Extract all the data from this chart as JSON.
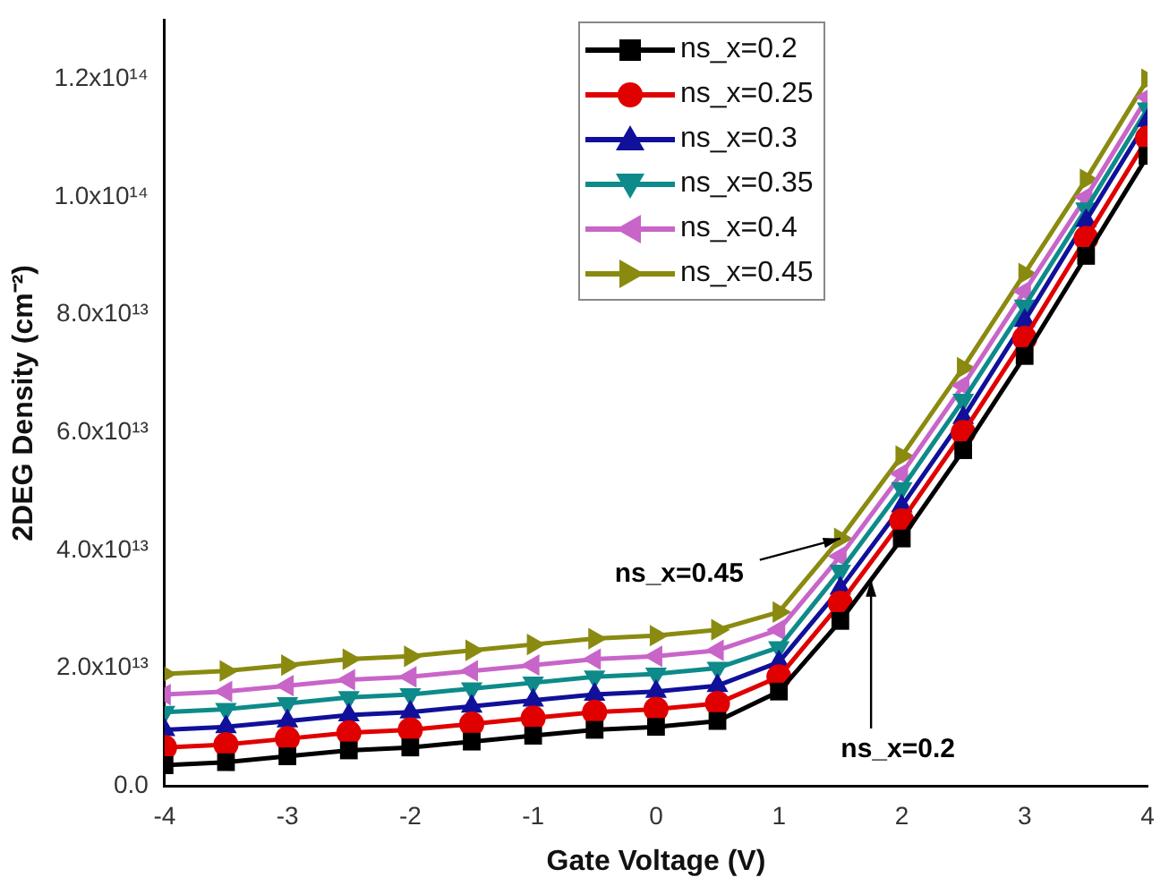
{
  "chart_data": {
    "type": "line",
    "xlabel": "Gate Voltage (V)",
    "ylabel": "2DEG Density (cm⁻²)",
    "x": [
      -4,
      -3.5,
      -3,
      -2.5,
      -2,
      -1.5,
      -1,
      -0.5,
      0,
      0.5,
      1,
      1.5,
      2,
      2.5,
      3,
      3.5,
      4
    ],
    "series": [
      {
        "name": "ns_x=0.2",
        "color": "#000000",
        "marker": "square",
        "values": [
          3500000000000.0,
          4000000000000.0,
          5000000000000.0,
          6000000000000.0,
          6500000000000.0,
          7500000000000.0,
          8500000000000.0,
          9500000000000.0,
          10000000000000.0,
          11000000000000.0,
          16000000000000.0,
          28000000000000.0,
          42000000000000.0,
          57000000000000.0,
          73000000000000.0,
          90000000000000.0,
          107000000000000.0
        ]
      },
      {
        "name": "ns_x=0.25",
        "color": "#e00000",
        "marker": "circle",
        "values": [
          6500000000000.0,
          7000000000000.0,
          8000000000000.0,
          9000000000000.0,
          9500000000000.0,
          10500000000000.0,
          11500000000000.0,
          12500000000000.0,
          13000000000000.0,
          14000000000000.0,
          18500000000000.0,
          31000000000000.0,
          45000000000000.0,
          60000000000000.0,
          76000000000000.0,
          93000000000000.0,
          110000000000000.0
        ]
      },
      {
        "name": "ns_x=0.3",
        "color": "#10109a",
        "marker": "triangle",
        "values": [
          9500000000000.0,
          10000000000000.0,
          11000000000000.0,
          12000000000000.0,
          12500000000000.0,
          13500000000000.0,
          14500000000000.0,
          15500000000000.0,
          16000000000000.0,
          17000000000000.0,
          21000000000000.0,
          33500000000000.0,
          47500000000000.0,
          62500000000000.0,
          79000000000000.0,
          96000000000000.0,
          113000000000000.0
        ]
      },
      {
        "name": "ns_x=0.35",
        "color": "#0e8a8a",
        "marker": "triangle-down",
        "values": [
          12500000000000.0,
          13000000000000.0,
          14000000000000.0,
          15000000000000.0,
          15500000000000.0,
          16500000000000.0,
          17500000000000.0,
          18500000000000.0,
          19000000000000.0,
          20000000000000.0,
          23500000000000.0,
          36500000000000.0,
          50500000000000.0,
          65500000000000.0,
          81500000000000.0,
          98000000000000.0,
          115000000000000.0
        ]
      },
      {
        "name": "ns_x=0.4",
        "color": "#c865c8",
        "marker": "triangle-left",
        "values": [
          15500000000000.0,
          16000000000000.0,
          17000000000000.0,
          18000000000000.0,
          18500000000000.0,
          19500000000000.0,
          20500000000000.0,
          21500000000000.0,
          22000000000000.0,
          23000000000000.0,
          26500000000000.0,
          39000000000000.0,
          53000000000000.0,
          68000000000000.0,
          84000000000000.0,
          100000000000000.0,
          117000000000000.0
        ]
      },
      {
        "name": "ns_x=0.45",
        "color": "#8a8a10",
        "marker": "triangle-right",
        "values": [
          19000000000000.0,
          19500000000000.0,
          20500000000000.0,
          21500000000000.0,
          22000000000000.0,
          23000000000000.0,
          24000000000000.0,
          25000000000000.0,
          25500000000000.0,
          26500000000000.0,
          29500000000000.0,
          42000000000000.0,
          56000000000000.0,
          71000000000000.0,
          87000000000000.0,
          103000000000000.0,
          120000000000000.0
        ]
      }
    ],
    "xlim": [
      -4,
      4
    ],
    "xticks": [
      -4,
      -3,
      -2,
      -1,
      0,
      1,
      2,
      3,
      4
    ],
    "ylim": [
      0,
      130000000000000.0
    ],
    "yticks": [
      {
        "value": 0,
        "label": "0.0"
      },
      {
        "value": 20000000000000.0,
        "label": "2.0x10¹³"
      },
      {
        "value": 40000000000000.0,
        "label": "4.0x10¹³"
      },
      {
        "value": 60000000000000.0,
        "label": "6.0x10¹³"
      },
      {
        "value": 80000000000000.0,
        "label": "8.0x10¹³"
      },
      {
        "value": 100000000000000.0,
        "label": "1.0x10¹⁴"
      },
      {
        "value": 120000000000000.0,
        "label": "1.2x10¹⁴"
      }
    ],
    "annotations": [
      {
        "text": "ns_x=0.45",
        "x": 1.5,
        "y": 42000000000000.0
      },
      {
        "text": "ns_x=0.2",
        "x": 1.75,
        "y": 35000000000000.0
      }
    ],
    "legend": "top right",
    "grid": false,
    "line_style": "solid"
  }
}
